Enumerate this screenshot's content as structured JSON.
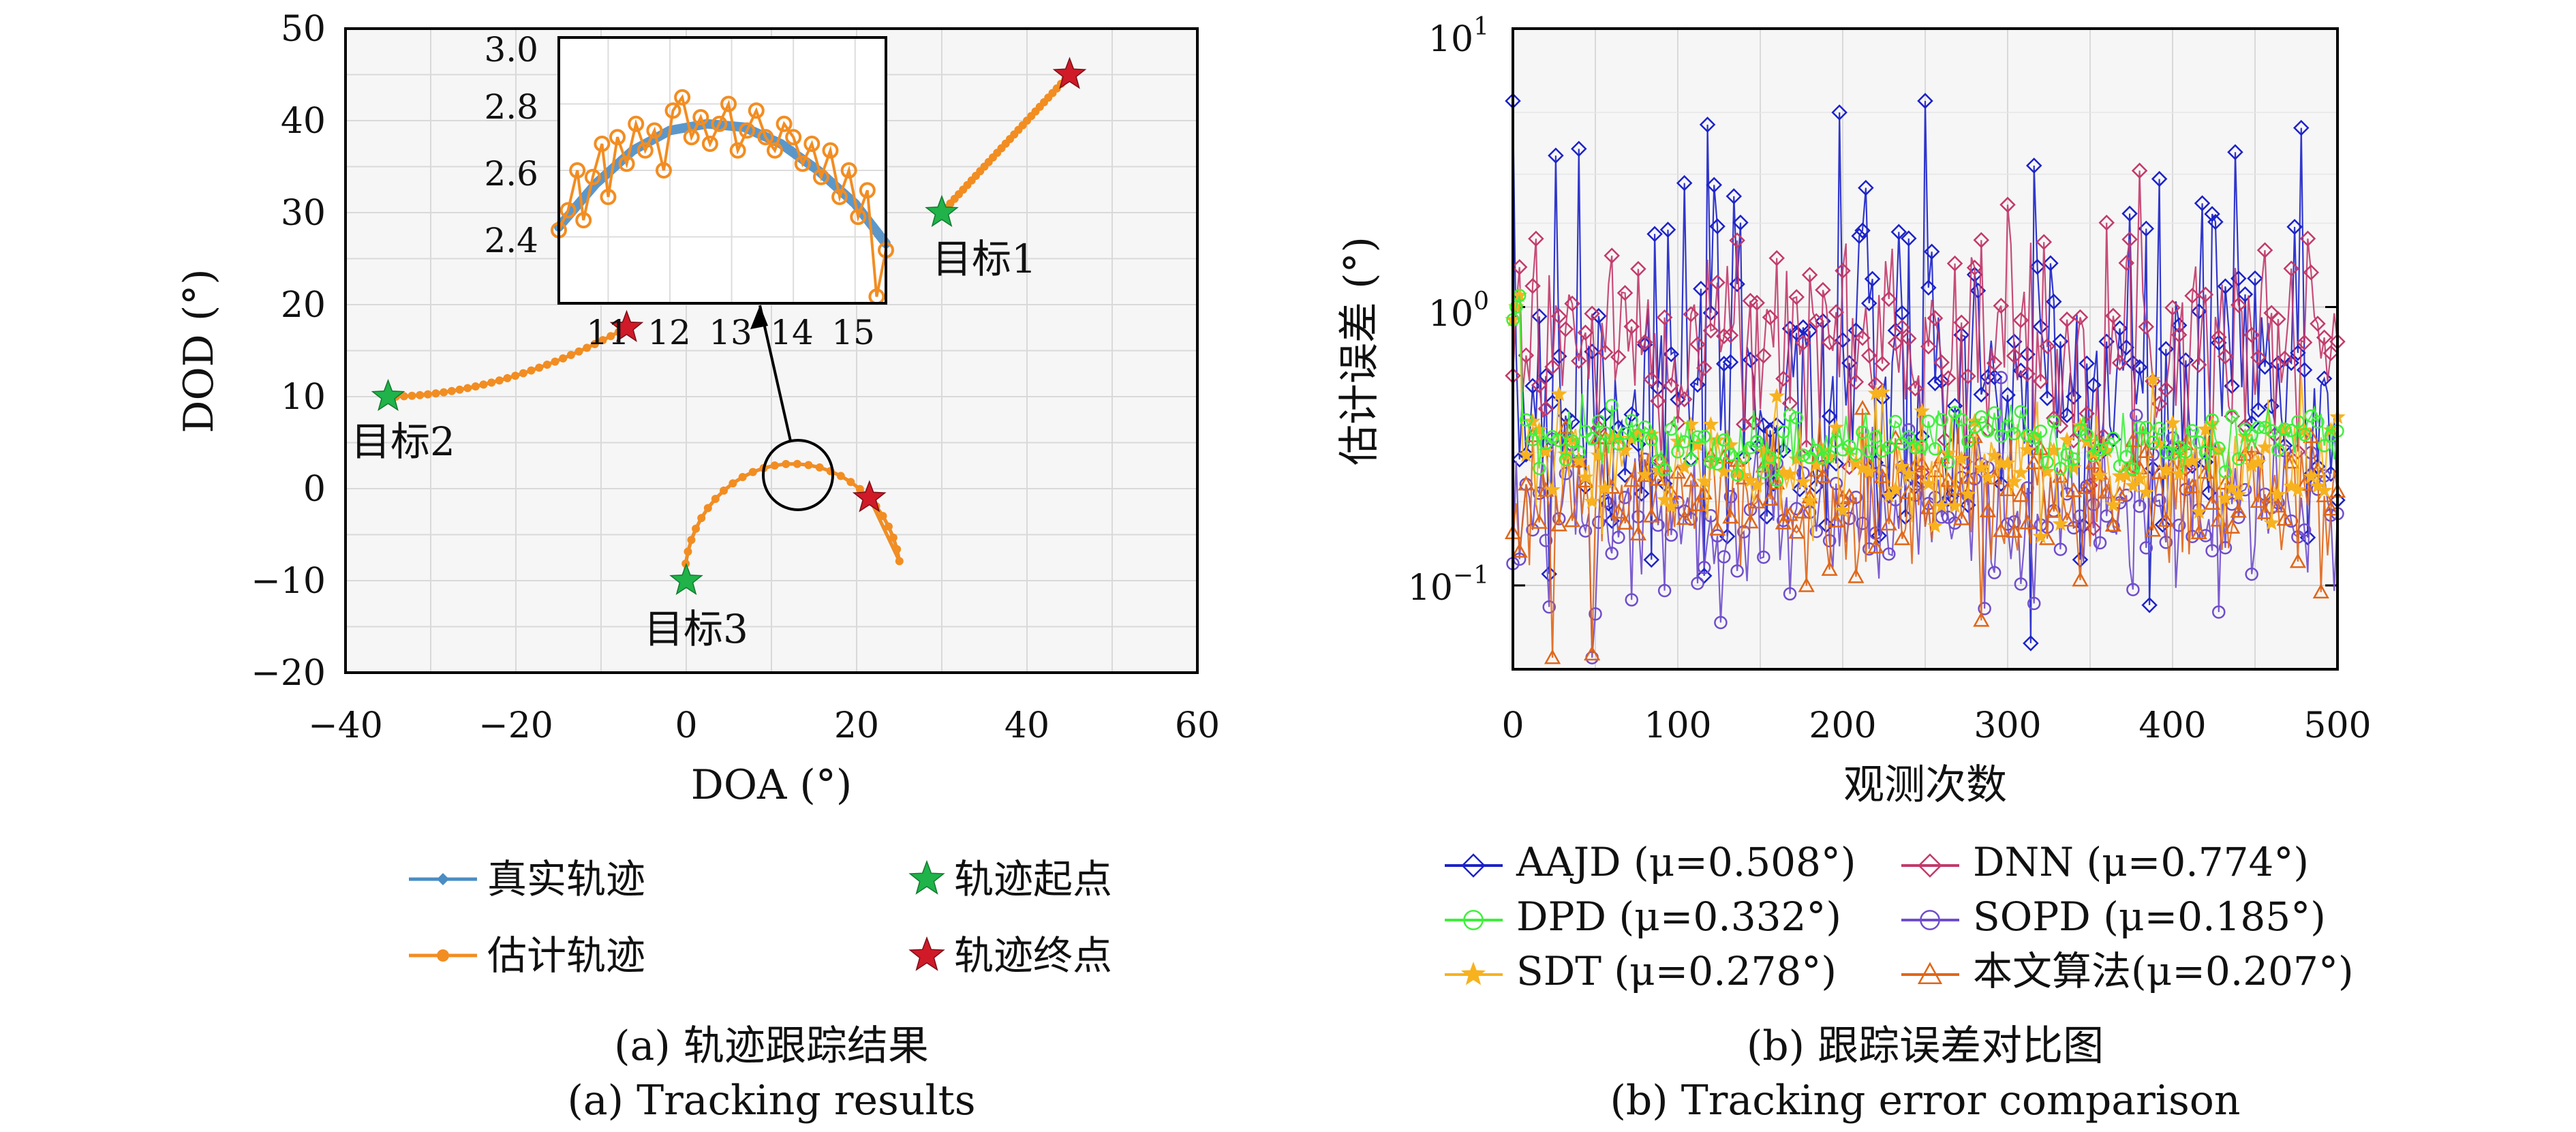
{
  "colors": {
    "true_track": "#4a8cc4",
    "est_track": "#f28d22",
    "start_star": "#1fb34a",
    "end_star": "#d01a28",
    "AAJD": "#1c22c8",
    "DNN": "#c23a6a",
    "DPD": "#3ff03c",
    "SOPD": "#6f4dcc",
    "SDT": "#f7b21e",
    "OURS": "#e06618"
  },
  "chart_data": [
    {
      "type": "line",
      "xlabel": "DOA (°)",
      "ylabel": "DOD (°)",
      "xlim": [
        -40,
        60
      ],
      "ylim": [
        -20,
        50
      ],
      "xticks": [
        "−40",
        "−20",
        "0",
        "20",
        "40",
        "60"
      ],
      "yticks": [
        "−20",
        "−10",
        "0",
        "10",
        "20",
        "30",
        "40",
        "50"
      ],
      "grid": true,
      "legend_position": "below",
      "legend": {
        "true_track": "真实轨迹",
        "est_track": "估计轨迹",
        "start": "轨迹起点",
        "end": "轨迹终点"
      },
      "targets": [
        {
          "label": "目标1",
          "start": [
            30,
            30
          ],
          "end": [
            45,
            45
          ],
          "path": "line"
        },
        {
          "label": "目标2",
          "start": [
            -35,
            10
          ],
          "end": [
            -7,
            17.5
          ],
          "path": "curve"
        },
        {
          "label": "目标3",
          "start": [
            0,
            -10
          ],
          "end": [
            21.5,
            -1
          ],
          "path": "arc"
        }
      ],
      "inset": {
        "xlim": [
          10.2,
          15.5
        ],
        "ylim": [
          2.2,
          3.0
        ],
        "xticks": [
          "11",
          "12",
          "13",
          "14",
          "15"
        ],
        "yticks": [
          "2.4",
          "2.6",
          "2.8",
          "3.0"
        ],
        "zoom_center": [
          13,
          2
        ],
        "true_x": [
          10.2,
          10.8,
          11.4,
          12.0,
          12.6,
          13.2,
          13.8,
          14.4,
          15.0,
          15.5
        ],
        "true_y": [
          2.43,
          2.56,
          2.66,
          2.72,
          2.74,
          2.73,
          2.68,
          2.6,
          2.5,
          2.38
        ],
        "est_x": [
          10.2,
          10.35,
          10.5,
          10.6,
          10.75,
          10.9,
          11.0,
          11.15,
          11.3,
          11.45,
          11.6,
          11.75,
          11.9,
          12.05,
          12.2,
          12.35,
          12.5,
          12.65,
          12.8,
          12.95,
          13.1,
          13.25,
          13.4,
          13.55,
          13.7,
          13.85,
          14.0,
          14.15,
          14.3,
          14.45,
          14.6,
          14.75,
          14.9,
          15.05,
          15.2,
          15.35,
          15.5
        ],
        "est_y": [
          2.42,
          2.48,
          2.6,
          2.45,
          2.58,
          2.68,
          2.52,
          2.7,
          2.62,
          2.74,
          2.66,
          2.72,
          2.6,
          2.78,
          2.82,
          2.7,
          2.76,
          2.68,
          2.74,
          2.8,
          2.66,
          2.72,
          2.78,
          2.7,
          2.66,
          2.74,
          2.7,
          2.62,
          2.68,
          2.58,
          2.66,
          2.52,
          2.6,
          2.46,
          2.54,
          2.22,
          2.36
        ]
      }
    },
    {
      "type": "line",
      "yscale": "log",
      "xlabel": "观测次数",
      "ylabel": "估计误差 (°)",
      "xlim": [
        0,
        500
      ],
      "ylim": [
        0.05,
        10
      ],
      "xticks": [
        "0",
        "100",
        "200",
        "300",
        "400",
        "500"
      ],
      "ytick_bases": [
        "10",
        "10",
        "10"
      ],
      "ytick_exps": [
        "−1",
        "0",
        "1"
      ],
      "grid": true,
      "legend_position": "below",
      "series": [
        {
          "key": "AAJD",
          "name": "AAJD (μ=0.508°)",
          "mean": 0.508,
          "marker": "diamond"
        },
        {
          "key": "DNN",
          "name": "DNN (μ=0.774°)",
          "mean": 0.774,
          "marker": "diamond"
        },
        {
          "key": "DPD",
          "name": "DPD (μ=0.332°)",
          "mean": 0.332,
          "marker": "circle"
        },
        {
          "key": "SOPD",
          "name": "SOPD (μ=0.185°)",
          "mean": 0.185,
          "marker": "circle"
        },
        {
          "key": "SDT",
          "name": "SDT (μ=0.278°)",
          "mean": 0.278,
          "marker": "star"
        },
        {
          "key": "OURS",
          "name": "本文算法(μ=0.207°)",
          "mean": 0.207,
          "marker": "triangle"
        }
      ],
      "peaks": [
        {
          "key": "AAJD",
          "x": 198,
          "y": 5.0
        },
        {
          "key": "AAJD",
          "x": 478,
          "y": 4.4
        },
        {
          "key": "AAJD",
          "x": 437,
          "y": 3.6
        },
        {
          "key": "AAJD",
          "x": 40,
          "y": 3.7
        },
        {
          "key": "AAJD",
          "x": 26,
          "y": 3.5
        },
        {
          "key": "AAJD",
          "x": 134,
          "y": 2.5
        },
        {
          "key": "AAJD",
          "x": 313,
          "y": 0.062
        },
        {
          "key": "AAJD",
          "x": 385,
          "y": 0.085
        },
        {
          "key": "OURS",
          "x": 24,
          "y": 0.055
        }
      ]
    }
  ],
  "annotations": {
    "target1": "目标1",
    "target2": "目标2",
    "target3": "目标3"
  },
  "captions": {
    "a_cn": "(a) 轨迹跟踪结果",
    "a_en": "(a) Tracking results",
    "b_cn": "(b) 跟踪误差对比图",
    "b_en": "(b) Tracking error comparison"
  }
}
